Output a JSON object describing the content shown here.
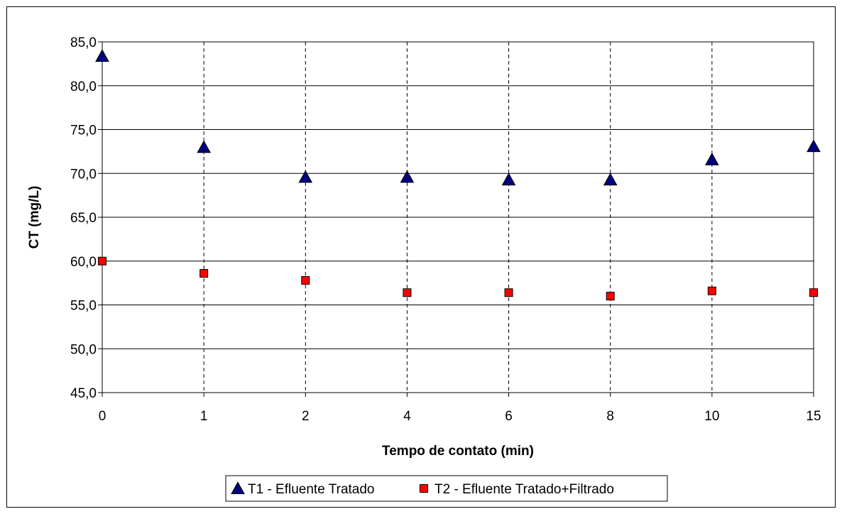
{
  "chart_data": {
    "type": "scatter",
    "title": "",
    "xlabel": "Tempo de contato (min)",
    "ylabel": "CT (mg/L)",
    "categories": [
      "0",
      "1",
      "2",
      "4",
      "6",
      "8",
      "10",
      "15"
    ],
    "ylim": [
      45,
      85
    ],
    "yticks": [
      "45,0",
      "50,0",
      "55,0",
      "60,0",
      "65,0",
      "70,0",
      "75,0",
      "80,0",
      "85,0"
    ],
    "grid": "horizontal solid, vertical dashed",
    "legend_position": "bottom",
    "series": [
      {
        "name": "T1 - Efluente Tratado",
        "marker": "triangle",
        "color": "#000080",
        "values": [
          83.3,
          72.9,
          69.5,
          69.5,
          69.2,
          69.2,
          71.5,
          73.0
        ]
      },
      {
        "name": "T2 - Efluente Tratado+Filtrado",
        "marker": "square",
        "color": "#ff0000",
        "values": [
          60.0,
          58.6,
          57.8,
          56.4,
          56.4,
          56.0,
          56.6,
          56.4
        ]
      }
    ]
  }
}
